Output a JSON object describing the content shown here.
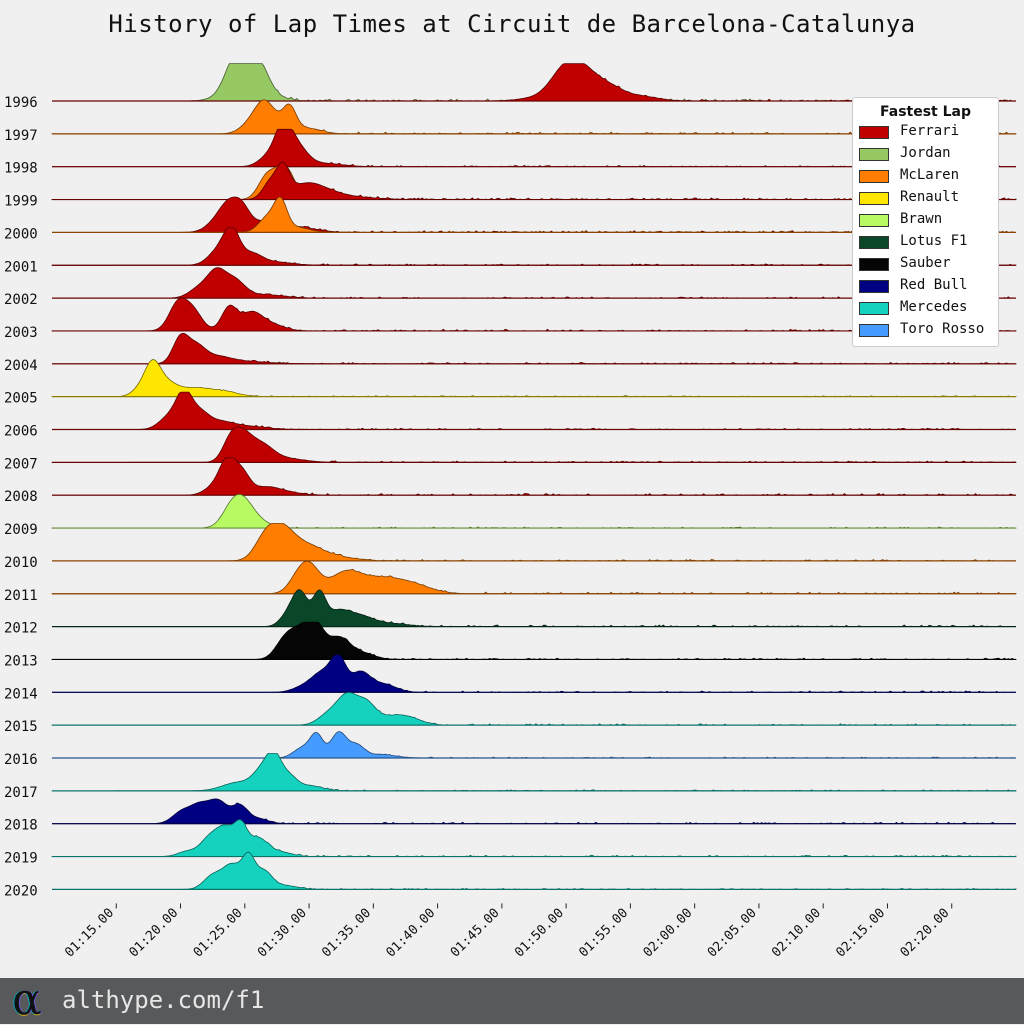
{
  "chart_title": "History of Lap Times at Circuit de Barcelona-Catalunya",
  "footer": {
    "url": "althype.com/f1",
    "logo_glyph": "α"
  },
  "chart_data": {
    "type": "ridgeline",
    "title": "History of Lap Times at Circuit de Barcelona-Catalunya",
    "xlabel": "",
    "ylabel": "",
    "x_unit": "seconds",
    "xlim": [
      70,
      145
    ],
    "x_ticks": [
      {
        "value": 75,
        "label": "01:15.00"
      },
      {
        "value": 80,
        "label": "01:20.00"
      },
      {
        "value": 85,
        "label": "01:25.00"
      },
      {
        "value": 90,
        "label": "01:30.00"
      },
      {
        "value": 95,
        "label": "01:35.00"
      },
      {
        "value": 100,
        "label": "01:40.00"
      },
      {
        "value": 105,
        "label": "01:45.00"
      },
      {
        "value": 110,
        "label": "01:50.00"
      },
      {
        "value": 115,
        "label": "01:55.00"
      },
      {
        "value": 120,
        "label": "02:00.00"
      },
      {
        "value": 125,
        "label": "02:05.00"
      },
      {
        "value": 130,
        "label": "02:10.00"
      },
      {
        "value": 135,
        "label": "02:15.00"
      },
      {
        "value": 140,
        "label": "02:20.00"
      }
    ],
    "legend": {
      "title": "Fastest Lap",
      "position": "top-right",
      "items": [
        {
          "team": "Ferrari",
          "color": "#c00000"
        },
        {
          "team": "Jordan",
          "color": "#96c864"
        },
        {
          "team": "McLaren",
          "color": "#ff7d00"
        },
        {
          "team": "Renault",
          "color": "#ffe600"
        },
        {
          "team": "Brawn",
          "color": "#b8fa64"
        },
        {
          "team": "Lotus F1",
          "color": "#0a4628"
        },
        {
          "team": "Sauber",
          "color": "#050505"
        },
        {
          "team": "Red Bull",
          "color": "#000082"
        },
        {
          "team": "Mercedes",
          "color": "#14d2be"
        },
        {
          "team": "Toro Rosso",
          "color": "#469bff"
        }
      ]
    },
    "rows": [
      {
        "year": "1996",
        "layers": [
          {
            "team": "Jordan",
            "peaks": [
              [
                84.5,
                0.75,
                0.8
              ],
              [
                86,
                0.75,
                0.8
              ],
              [
                85.3,
                0.5,
                1.5
              ],
              [
                84,
                0.3,
                0.8
              ]
            ],
            "tail": 0.06
          },
          {
            "team": "Ferrari",
            "peaks": [
              [
                110.5,
                0.55,
                1.2
              ],
              [
                111.5,
                0.6,
                1.3
              ],
              [
                109.5,
                0.35,
                1
              ],
              [
                113.5,
                0.25,
                1
              ],
              [
                115.5,
                0.15,
                1.5
              ],
              [
                108,
                0.1,
                1.5
              ]
            ],
            "tail": 0.05
          }
        ]
      },
      {
        "year": "1997",
        "layers": [
          {
            "team": "McLaren",
            "peaks": [
              [
                86.5,
                0.65,
                0.7
              ],
              [
                88.5,
                0.6,
                0.5
              ],
              [
                87.5,
                0.35,
                1
              ],
              [
                85.5,
                0.3,
                0.8
              ],
              [
                90,
                0.15,
                1
              ]
            ],
            "tail": 0.05
          }
        ]
      },
      {
        "year": "1998",
        "layers": [
          {
            "team": "Ferrari",
            "peaks": [
              [
                88,
                0.95,
                0.6
              ],
              [
                89,
                0.6,
                0.8
              ],
              [
                87,
                0.35,
                0.8
              ],
              [
                91,
                0.1,
                1.5
              ]
            ],
            "tail": 0.04
          }
        ]
      },
      {
        "year": "1999",
        "layers": [
          {
            "team": "McLaren",
            "peaks": [
              [
                87.3,
                0.65,
                0.8
              ],
              [
                88.3,
                0.6,
                0.6
              ],
              [
                86.5,
                0.3,
                0.6
              ],
              [
                89.5,
                0.12,
                1
              ]
            ],
            "tail": 0.04
          },
          {
            "team": "Ferrari",
            "peaks": [
              [
                88,
                0.8,
                0.5
              ],
              [
                87,
                0.5,
                0.6
              ],
              [
                89.5,
                0.35,
                1.2
              ],
              [
                91,
                0.2,
                1.3
              ],
              [
                93,
                0.08,
                2
              ]
            ],
            "tail": 0.05
          }
        ]
      },
      {
        "year": "2000",
        "layers": [
          {
            "team": "Ferrari",
            "peaks": [
              [
                83.8,
                0.7,
                0.7
              ],
              [
                84.8,
                0.55,
                0.6
              ],
              [
                82.8,
                0.3,
                0.8
              ],
              [
                86.5,
                0.3,
                1.2
              ],
              [
                89,
                0.15,
                1.5
              ]
            ],
            "tail": 0.05
          },
          {
            "team": "McLaren",
            "peaks": [
              [
                87.8,
                0.8,
                0.5
              ],
              [
                86.8,
                0.45,
                0.7
              ],
              [
                89,
                0.15,
                1
              ]
            ],
            "tail": 0.04
          }
        ]
      },
      {
        "year": "2001",
        "layers": [
          {
            "team": "Ferrari",
            "peaks": [
              [
                84,
                0.9,
                0.6
              ],
              [
                83,
                0.45,
                0.8
              ],
              [
                85.5,
                0.3,
                0.8
              ],
              [
                87,
                0.1,
                1.5
              ]
            ],
            "tail": 0.04
          }
        ]
      },
      {
        "year": "2002",
        "layers": [
          {
            "team": "Ferrari",
            "peaks": [
              [
                82.8,
                0.7,
                0.7
              ],
              [
                84.2,
                0.5,
                0.8
              ],
              [
                81.5,
                0.3,
                0.8
              ],
              [
                86.5,
                0.1,
                1.5
              ]
            ],
            "tail": 0.04
          }
        ]
      },
      {
        "year": "2003",
        "layers": [
          {
            "team": "Ferrari",
            "peaks": [
              [
                79.8,
                0.8,
                0.7
              ],
              [
                81,
                0.55,
                0.7
              ],
              [
                83.8,
                0.7,
                0.6
              ],
              [
                85.5,
                0.5,
                0.8
              ],
              [
                87,
                0.2,
                1
              ]
            ],
            "tail": 0.05
          }
        ]
      },
      {
        "year": "2004",
        "layers": [
          {
            "team": "Ferrari",
            "peaks": [
              [
                80,
                0.75,
                0.6
              ],
              [
                81.2,
                0.45,
                0.7
              ],
              [
                82.7,
                0.2,
                1.2
              ],
              [
                85,
                0.06,
                2
              ]
            ],
            "tail": 0.04
          }
        ]
      },
      {
        "year": "2005",
        "layers": [
          {
            "team": "Renault",
            "peaks": [
              [
                77.8,
                0.85,
                0.6
              ],
              [
                78.8,
                0.35,
                0.8
              ],
              [
                76.8,
                0.2,
                0.6
              ],
              [
                81,
                0.25,
                1.5
              ],
              [
                83.5,
                0.1,
                1.2
              ]
            ],
            "tail": 0.03
          }
        ]
      },
      {
        "year": "2006",
        "layers": [
          {
            "team": "Ferrari",
            "peaks": [
              [
                80.3,
                0.95,
                0.6
              ],
              [
                79.2,
                0.4,
                0.8
              ],
              [
                81.5,
                0.45,
                0.7
              ],
              [
                83,
                0.2,
                1
              ],
              [
                85,
                0.1,
                1.5
              ]
            ],
            "tail": 0.04
          }
        ]
      },
      {
        "year": "2007",
        "layers": [
          {
            "team": "Ferrari",
            "peaks": [
              [
                84.7,
                0.8,
                0.8
              ],
              [
                86.3,
                0.45,
                0.9
              ],
              [
                83.8,
                0.4,
                0.6
              ],
              [
                88,
                0.12,
                1.5
              ]
            ],
            "tail": 0.04
          }
        ]
      },
      {
        "year": "2008",
        "layers": [
          {
            "team": "Ferrari",
            "peaks": [
              [
                83.7,
                0.9,
                0.6
              ],
              [
                84.8,
                0.6,
                0.6
              ],
              [
                82.8,
                0.3,
                0.8
              ],
              [
                86.5,
                0.2,
                1
              ],
              [
                88,
                0.1,
                1.2
              ]
            ],
            "tail": 0.05
          }
        ]
      },
      {
        "year": "2009",
        "layers": [
          {
            "team": "Brawn",
            "peaks": [
              [
                84.8,
                0.85,
                0.9
              ],
              [
                83.8,
                0.3,
                0.7
              ],
              [
                86.5,
                0.1,
                0.8
              ]
            ],
            "tail": 0.03
          }
        ]
      },
      {
        "year": "2010",
        "layers": [
          {
            "team": "McLaren",
            "peaks": [
              [
                87.8,
                0.9,
                1.0
              ],
              [
                86.5,
                0.5,
                0.8
              ],
              [
                89.8,
                0.4,
                1.2
              ],
              [
                92,
                0.12,
                1.5
              ]
            ],
            "tail": 0.04
          }
        ]
      },
      {
        "year": "2011",
        "layers": [
          {
            "team": "McLaren",
            "peaks": [
              [
                90,
                0.8,
                0.8
              ],
              [
                92.8,
                0.6,
                1.2
              ],
              [
                95.5,
                0.4,
                1.5
              ],
              [
                98,
                0.25,
                1.5
              ],
              [
                89,
                0.3,
                0.7
              ]
            ],
            "tail": 0.05
          }
        ]
      },
      {
        "year": "2012",
        "layers": [
          {
            "team": "Lotus F1",
            "peaks": [
              [
                89.3,
                1.0,
                0.6
              ],
              [
                90.8,
                0.95,
                0.5
              ],
              [
                92.2,
                0.4,
                0.8
              ],
              [
                93.8,
                0.3,
                1.0
              ],
              [
                96,
                0.1,
                1.5
              ],
              [
                88.3,
                0.3,
                0.6
              ]
            ],
            "tail": 0.05
          }
        ]
      },
      {
        "year": "2013",
        "layers": [
          {
            "team": "Sauber",
            "peaks": [
              [
                89.2,
                0.75,
                0.8
              ],
              [
                90.5,
                0.95,
                0.7
              ],
              [
                88,
                0.45,
                0.7
              ],
              [
                92.3,
                0.6,
                0.8
              ],
              [
                94,
                0.2,
                1.0
              ]
            ],
            "tail": 0.04
          }
        ]
      },
      {
        "year": "2014",
        "layers": [
          {
            "team": "Red Bull",
            "peaks": [
              [
                92.3,
                0.95,
                0.6
              ],
              [
                91,
                0.55,
                0.8
              ],
              [
                94,
                0.55,
                0.7
              ],
              [
                95.7,
                0.25,
                1.0
              ],
              [
                89.5,
                0.15,
                0.8
              ]
            ],
            "tail": 0.04
          }
        ]
      },
      {
        "year": "2015",
        "layers": [
          {
            "team": "Mercedes",
            "peaks": [
              [
                93,
                0.85,
                0.8
              ],
              [
                94.5,
                0.55,
                0.7
              ],
              [
                91.5,
                0.3,
                0.8
              ],
              [
                96.5,
                0.25,
                1.2
              ],
              [
                98,
                0.12,
                1
              ]
            ],
            "tail": 0.04
          }
        ]
      },
      {
        "year": "2016",
        "layers": [
          {
            "team": "Toro Rosso",
            "peaks": [
              [
                90.6,
                0.65,
                0.5
              ],
              [
                92.3,
                0.75,
                0.6
              ],
              [
                89.5,
                0.3,
                0.7
              ],
              [
                93.7,
                0.35,
                0.6
              ],
              [
                95.5,
                0.1,
                1.2
              ]
            ],
            "tail": 0.03
          }
        ]
      },
      {
        "year": "2017",
        "layers": [
          {
            "team": "Mercedes",
            "peaks": [
              [
                87.3,
                0.95,
                0.6
              ],
              [
                86.3,
                0.5,
                0.7
              ],
              [
                88.5,
                0.35,
                0.6
              ],
              [
                84.5,
                0.25,
                1.2
              ],
              [
                90,
                0.15,
                1
              ]
            ],
            "tail": 0.03
          }
        ]
      },
      {
        "year": "2018",
        "layers": [
          {
            "team": "Red Bull",
            "peaks": [
              [
                81.5,
                0.55,
                0.8
              ],
              [
                83,
                0.6,
                0.7
              ],
              [
                84.6,
                0.5,
                0.6
              ],
              [
                80,
                0.3,
                0.7
              ],
              [
                86,
                0.15,
                0.8
              ]
            ],
            "tail": 0.04
          }
        ]
      },
      {
        "year": "2019",
        "layers": [
          {
            "team": "Mercedes",
            "peaks": [
              [
                83.5,
                0.8,
                0.7
              ],
              [
                84.7,
                0.8,
                0.5
              ],
              [
                82.2,
                0.5,
                0.7
              ],
              [
                86,
                0.5,
                0.7
              ],
              [
                87.5,
                0.15,
                1
              ],
              [
                80.5,
                0.15,
                0.7
              ]
            ],
            "tail": 0.04
          }
        ]
      },
      {
        "year": "2020",
        "layers": [
          {
            "team": "Mercedes",
            "peaks": [
              [
                85.3,
                0.9,
                0.5
              ],
              [
                84,
                0.7,
                0.7
              ],
              [
                82.5,
                0.4,
                0.7
              ],
              [
                86.5,
                0.5,
                0.6
              ],
              [
                88,
                0.12,
                1
              ]
            ],
            "tail": 0.03
          }
        ]
      }
    ]
  }
}
